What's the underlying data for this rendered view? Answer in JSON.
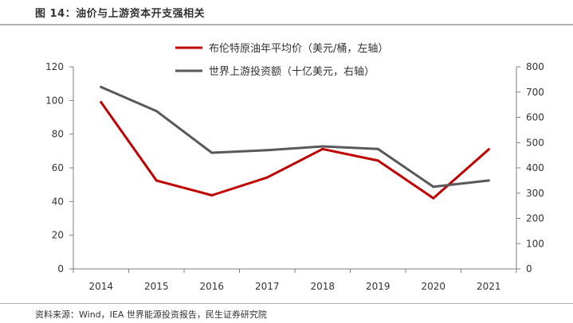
{
  "title": "图 14：油价与上游资本开支强相关",
  "source": "资料来源：Wind，IEA 世界能源投资报告，民生证券研究院",
  "colors": {
    "brent": "#c00000",
    "capex": "#595959",
    "axis": "#7f7f7f",
    "text": "#333333"
  },
  "chart_data": {
    "type": "line",
    "categories": [
      "2014",
      "2015",
      "2016",
      "2017",
      "2018",
      "2019",
      "2020",
      "2021"
    ],
    "series": [
      {
        "name": "布伦特原油年平均价（美元/桶，左轴）",
        "axis": "left",
        "color": "#c00000",
        "values": [
          99,
          52.5,
          43.7,
          54.3,
          71.2,
          64.3,
          42,
          71
        ]
      },
      {
        "name": "世界上游投资额（十亿美元，右轴）",
        "axis": "right",
        "color": "#595959",
        "values": [
          720,
          625,
          460,
          470,
          485,
          475,
          325,
          350
        ]
      }
    ],
    "y_left": {
      "min": 0,
      "max": 120,
      "ticks": [
        "0",
        "20",
        "40",
        "60",
        "80",
        "100",
        "120"
      ]
    },
    "y_right": {
      "min": 0,
      "max": 800,
      "ticks": [
        "0",
        "100",
        "200",
        "300",
        "400",
        "500",
        "600",
        "700",
        "800"
      ]
    },
    "grid": false,
    "legend_position": "top"
  }
}
